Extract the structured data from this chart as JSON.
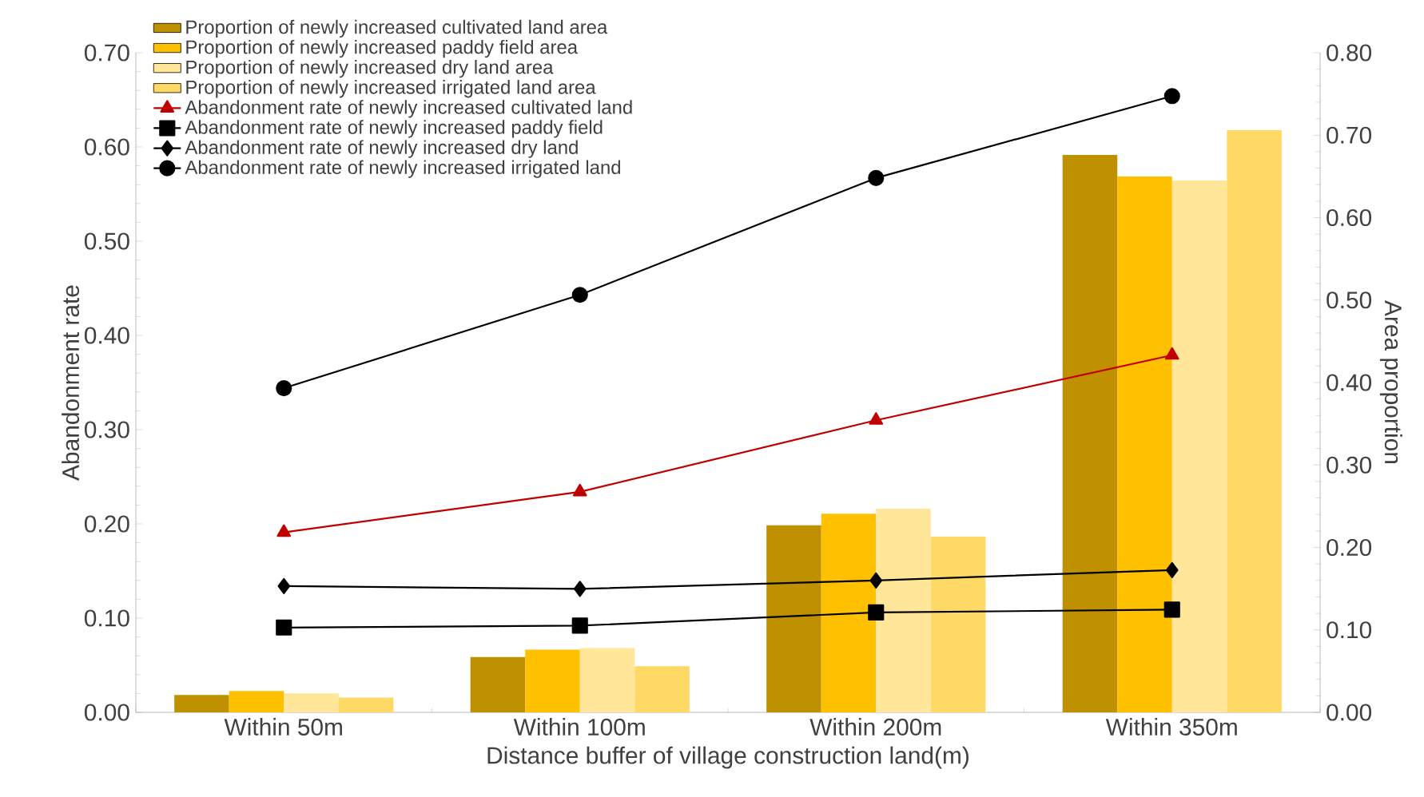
{
  "chart_data": {
    "type": "bar",
    "xlabel": "Distance buffer of village construction land(m)",
    "ylabel": "Abandonment rate",
    "y2label": "Area proportion",
    "categories": [
      "Within 50m",
      "Within 100m",
      "Within 200m",
      "Within 350m"
    ],
    "series": [
      {
        "name": "Proportion of newly increased cultivated land area",
        "axis": "y2",
        "color": "#bf9000",
        "values": [
          0.021,
          0.067,
          0.227,
          0.676
        ]
      },
      {
        "name": "Proportion of newly increased paddy field area",
        "axis": "y2",
        "color": "#ffc000",
        "values": [
          0.026,
          0.076,
          0.241,
          0.65
        ]
      },
      {
        "name": "Proportion of newly increased dry land area",
        "axis": "y2",
        "color": "#ffe699",
        "values": [
          0.023,
          0.078,
          0.247,
          0.645
        ]
      },
      {
        "name": "Proportion of newly increased irrigated land area",
        "axis": "y2",
        "color": "#ffd966",
        "values": [
          0.018,
          0.056,
          0.213,
          0.706
        ]
      },
      {
        "name": "Abandonment rate of newly increased cultivated land",
        "type": "line",
        "marker": "triangle",
        "color": "#c00000",
        "values": [
          0.191,
          0.234,
          0.31,
          0.379
        ]
      },
      {
        "name": "Abandonment rate of newly increased paddy field",
        "type": "line",
        "marker": "square",
        "color": "#000000",
        "values": [
          0.09,
          0.092,
          0.106,
          0.109
        ]
      },
      {
        "name": "Abandonment rate of newly increased dry land",
        "type": "line",
        "marker": "diamond",
        "color": "#000000",
        "values": [
          0.134,
          0.131,
          0.14,
          0.151
        ]
      },
      {
        "name": "Abandonment rate of newly increased irrigated land",
        "type": "line",
        "marker": "circle",
        "color": "#000000",
        "values": [
          0.344,
          0.443,
          0.567,
          0.654
        ]
      }
    ],
    "ylim": [
      0,
      0.7
    ],
    "yticks": [
      {
        "value": 0,
        "label": "0.00"
      },
      {
        "value": 0.1,
        "label": "0.10"
      },
      {
        "value": 0.2,
        "label": "0.20"
      },
      {
        "value": 0.3,
        "label": "0.30"
      },
      {
        "value": 0.4,
        "label": "0.40"
      },
      {
        "value": 0.5,
        "label": "0.50"
      },
      {
        "value": 0.6,
        "label": "0.60"
      },
      {
        "value": 0.7,
        "label": "0.70"
      }
    ],
    "y2lim": [
      0,
      0.8
    ],
    "y2ticks": [
      {
        "value": 0,
        "label": "0.00"
      },
      {
        "value": 0.1,
        "label": "0.10"
      },
      {
        "value": 0.2,
        "label": "0.20"
      },
      {
        "value": 0.3,
        "label": "0.30"
      },
      {
        "value": 0.4,
        "label": "0.40"
      },
      {
        "value": 0.5,
        "label": "0.50"
      },
      {
        "value": 0.6,
        "label": "0.60"
      },
      {
        "value": 0.7,
        "label": "0.70"
      },
      {
        "value": 0.8,
        "label": "0.80"
      }
    ],
    "legend": "top left",
    "grid": false
  }
}
